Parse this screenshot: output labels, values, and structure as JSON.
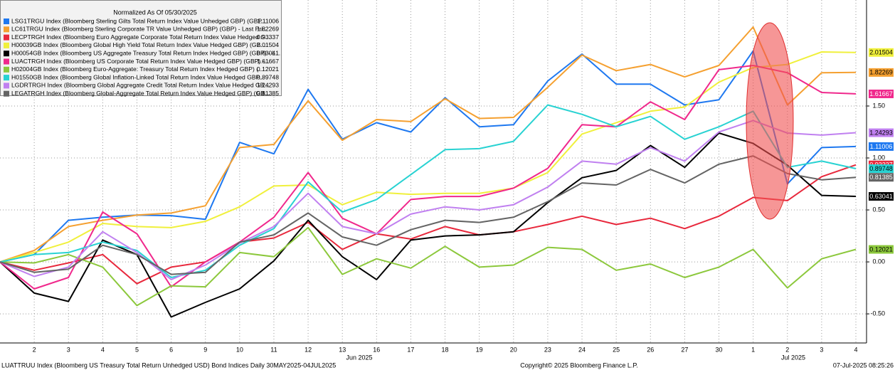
{
  "chart_data": {
    "type": "line",
    "legend_title": "Normalized As Of 05/30/2025",
    "annotations": [
      "Jun 2025",
      "Jul 2025"
    ],
    "footer": [
      "LUATTRUU Index (Bloomberg US Treasury Total Return Unhedged USD) Bond Indices  Daily 30MAY2025-04JUL2025",
      "Copyright© 2025 Bloomberg Finance L.P.",
      "07-Jul-2025 08:25:26"
    ],
    "categories": [
      null,
      "2",
      "3",
      "4",
      "5",
      "6",
      "9",
      "10",
      "11",
      "12",
      "13",
      "16",
      "17",
      "18",
      "19",
      "20",
      "23",
      "24",
      "25",
      "26",
      "27",
      "30",
      "1",
      "2",
      "3",
      "4"
    ],
    "ylim": [
      -0.78,
      2.52
    ],
    "yticks": [
      {
        "value": -0.5,
        "label": "-0.50"
      },
      {
        "value": 0,
        "label": "0.00"
      },
      {
        "value": 0.5,
        "label": "0.50"
      },
      {
        "value": 1,
        "label": "1.00"
      },
      {
        "value": 1.5,
        "label": "1.50"
      }
    ],
    "grid": true,
    "legend": "upper left",
    "series": [
      {
        "name": "LSG1TRGU Index (Bloomberg Sterling Gilts Total Return Index Value Unhedged GBP) (GBP...",
        "color": "#1e78f0",
        "values": [
          0,
          0.07,
          0.4,
          0.43,
          0.45,
          0.445,
          0.41,
          1.15,
          1.04,
          1.66,
          1.18,
          1.34,
          1.25,
          1.58,
          1.3,
          1.32,
          1.74,
          2.0,
          1.71,
          1.71,
          1.51,
          1.56,
          2.03,
          0.75,
          1.1,
          1.11006
        ]
      },
      {
        "name": "LC61TRGU Index (Bloomberg Sterling Corporate TR Value Unhedged GBP) (GBP) - Last Pri...",
        "color": "#f5a030",
        "values": [
          0,
          0.11,
          0.34,
          0.4,
          0.45,
          0.47,
          0.54,
          1.1,
          1.13,
          1.55,
          1.17,
          1.37,
          1.35,
          1.57,
          1.38,
          1.39,
          1.68,
          1.99,
          1.84,
          1.9,
          1.78,
          1.89,
          2.26,
          1.51,
          1.82,
          1.82269
        ]
      },
      {
        "name": "LECPTRGH Index (Bloomberg Euro Aggregate Corporate Total Return Index Value Hedged G...",
        "color": "#e8283c",
        "values": [
          0,
          -0.08,
          -0.01,
          0.07,
          -0.21,
          -0.05,
          0,
          0.19,
          0.23,
          0.38,
          0.12,
          0.27,
          0.22,
          0.34,
          0.26,
          0.29,
          0.36,
          0.44,
          0.36,
          0.42,
          0.32,
          0.44,
          0.62,
          0.59,
          0.82,
          0.93337
        ]
      },
      {
        "name": "H00039GB Index (Bloomberg Global High Yield Total Return Index Value Hedged GBP) (GB...",
        "color": "#f0f03c",
        "values": [
          0,
          0.09,
          0.19,
          0.37,
          0.34,
          0.33,
          0.39,
          0.53,
          0.73,
          0.74,
          0.55,
          0.67,
          0.65,
          0.66,
          0.66,
          0.71,
          0.86,
          1.23,
          1.34,
          1.45,
          1.49,
          1.73,
          1.87,
          1.9,
          2.02,
          2.01504
        ]
      },
      {
        "name": "H00054GB Index (Bloomberg US Aggregate Treasury Total Return Index Hedged GBP) (GBP) - L...",
        "color": "#000000",
        "values": [
          0,
          -0.3,
          -0.38,
          0.21,
          0.07,
          -0.53,
          -0.39,
          -0.26,
          0.01,
          0.4,
          0.05,
          -0.17,
          0.21,
          0.25,
          0.26,
          0.29,
          0.57,
          0.81,
          0.88,
          1.12,
          0.91,
          1.24,
          1.14,
          0.93,
          0.64,
          0.63041
        ]
      },
      {
        "name": "LUACTRGH Index (Bloomberg US Corporate Total Return Index Value Hedged GBP) (GBP) -...",
        "color": "#f0288c",
        "values": [
          0,
          -0.26,
          -0.15,
          0.48,
          0.27,
          -0.24,
          0,
          0.19,
          0.43,
          0.86,
          0.42,
          0.27,
          0.6,
          0.63,
          0.63,
          0.71,
          0.9,
          1.32,
          1.3,
          1.54,
          1.37,
          1.85,
          1.89,
          1.82,
          1.63,
          1.61667
        ]
      },
      {
        "name": "H02004GB Index (Bloomberg Euro-Aggregate: Treasury Total Return Index Hedged GBP) (...",
        "color": "#8cc83c",
        "values": [
          0,
          -0.01,
          0.07,
          -0.05,
          -0.42,
          -0.23,
          -0.24,
          0.09,
          0.05,
          0.33,
          -0.12,
          0.03,
          -0.06,
          0.15,
          -0.05,
          -0.03,
          0.14,
          0.12,
          -0.08,
          -0.02,
          -0.15,
          -0.05,
          0.12,
          -0.25,
          0.03,
          0.12021
        ]
      },
      {
        "name": "H01550GB Index (Bloomberg Global Inflation-Linked Total Return Index Value Hedged GBP...",
        "color": "#28d2d2",
        "values": [
          0,
          0.07,
          0.09,
          0.19,
          0.11,
          -0.15,
          -0.08,
          0.16,
          0.32,
          0.77,
          0.48,
          0.6,
          0.84,
          1.08,
          1.09,
          1.16,
          1.51,
          1.42,
          1.3,
          1.4,
          1.18,
          1.3,
          1.45,
          0.91,
          0.97,
          0.89748
        ]
      },
      {
        "name": "LGDRTRGH Index (Bloomberg Global Aggregate Credit Total Return Index Value Hedged GB...",
        "color": "#c080f0",
        "values": [
          0,
          -0.14,
          -0.05,
          0.29,
          0.09,
          -0.17,
          -0.03,
          0.18,
          0.34,
          0.66,
          0.34,
          0.27,
          0.46,
          0.53,
          0.5,
          0.55,
          0.72,
          0.97,
          0.94,
          1.1,
          0.97,
          1.25,
          1.36,
          1.24,
          1.22,
          1.24293
        ]
      },
      {
        "name": "LEGATRGH Index (Bloomberg Global-Aggregate Total Return Index Value Hedged GBP) (GB...",
        "color": "#646464",
        "values": [
          0,
          -0.1,
          -0.07,
          0.16,
          0.07,
          -0.12,
          -0.1,
          0.19,
          0.26,
          0.47,
          0.24,
          0.16,
          0.31,
          0.4,
          0.38,
          0.43,
          0.58,
          0.76,
          0.74,
          0.89,
          0.76,
          0.94,
          1.02,
          0.85,
          0.79,
          0.81385
        ]
      }
    ]
  }
}
